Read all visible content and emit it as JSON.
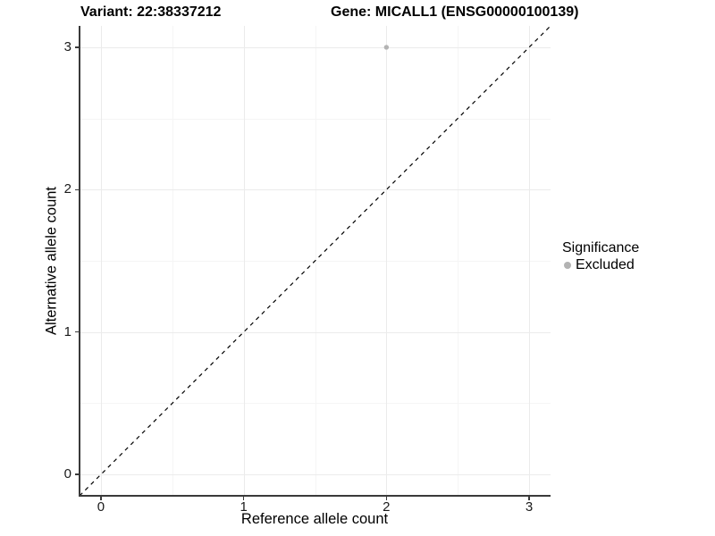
{
  "title": {
    "variant": "Variant: 22:38337212",
    "gene": "Gene: MICALL1 (ENSG00000100139)"
  },
  "axes": {
    "x": {
      "label": "Reference allele count",
      "ticks": [
        "0",
        "1",
        "2",
        "3"
      ]
    },
    "y": {
      "label": "Alternative allele count",
      "ticks": [
        "0",
        "1",
        "2",
        "3"
      ]
    }
  },
  "legend": {
    "title": "Significance",
    "items": [
      {
        "label": "Excluded",
        "color": "#b3b3b3"
      }
    ]
  },
  "colors": {
    "grid_major": "#ebebeb",
    "grid_minor": "#f5f5f5",
    "axis": "#3a3a3a",
    "reference_line": "#000000",
    "point_excluded": "#b3b3b3"
  },
  "chart_data": {
    "type": "scatter",
    "title": "Variant: 22:38337212   Gene: MICALL1 (ENSG00000100139)",
    "xlabel": "Reference allele count",
    "ylabel": "Alternative allele count",
    "xlim": [
      -0.15,
      3.15
    ],
    "ylim": [
      -0.15,
      3.15
    ],
    "x_ticks": [
      0,
      1,
      2,
      3
    ],
    "y_ticks": [
      0,
      1,
      2,
      3
    ],
    "x_minor": [
      0.5,
      1.5,
      2.5
    ],
    "y_minor": [
      0.5,
      1.5,
      2.5
    ],
    "grid": true,
    "legend_position": "right",
    "series": [
      {
        "name": "Excluded",
        "color": "#b3b3b3",
        "points": [
          {
            "x": 2,
            "y": 3
          }
        ]
      }
    ],
    "reference_line": {
      "style": "dashed",
      "equation": "y = x",
      "color": "#000000"
    }
  }
}
